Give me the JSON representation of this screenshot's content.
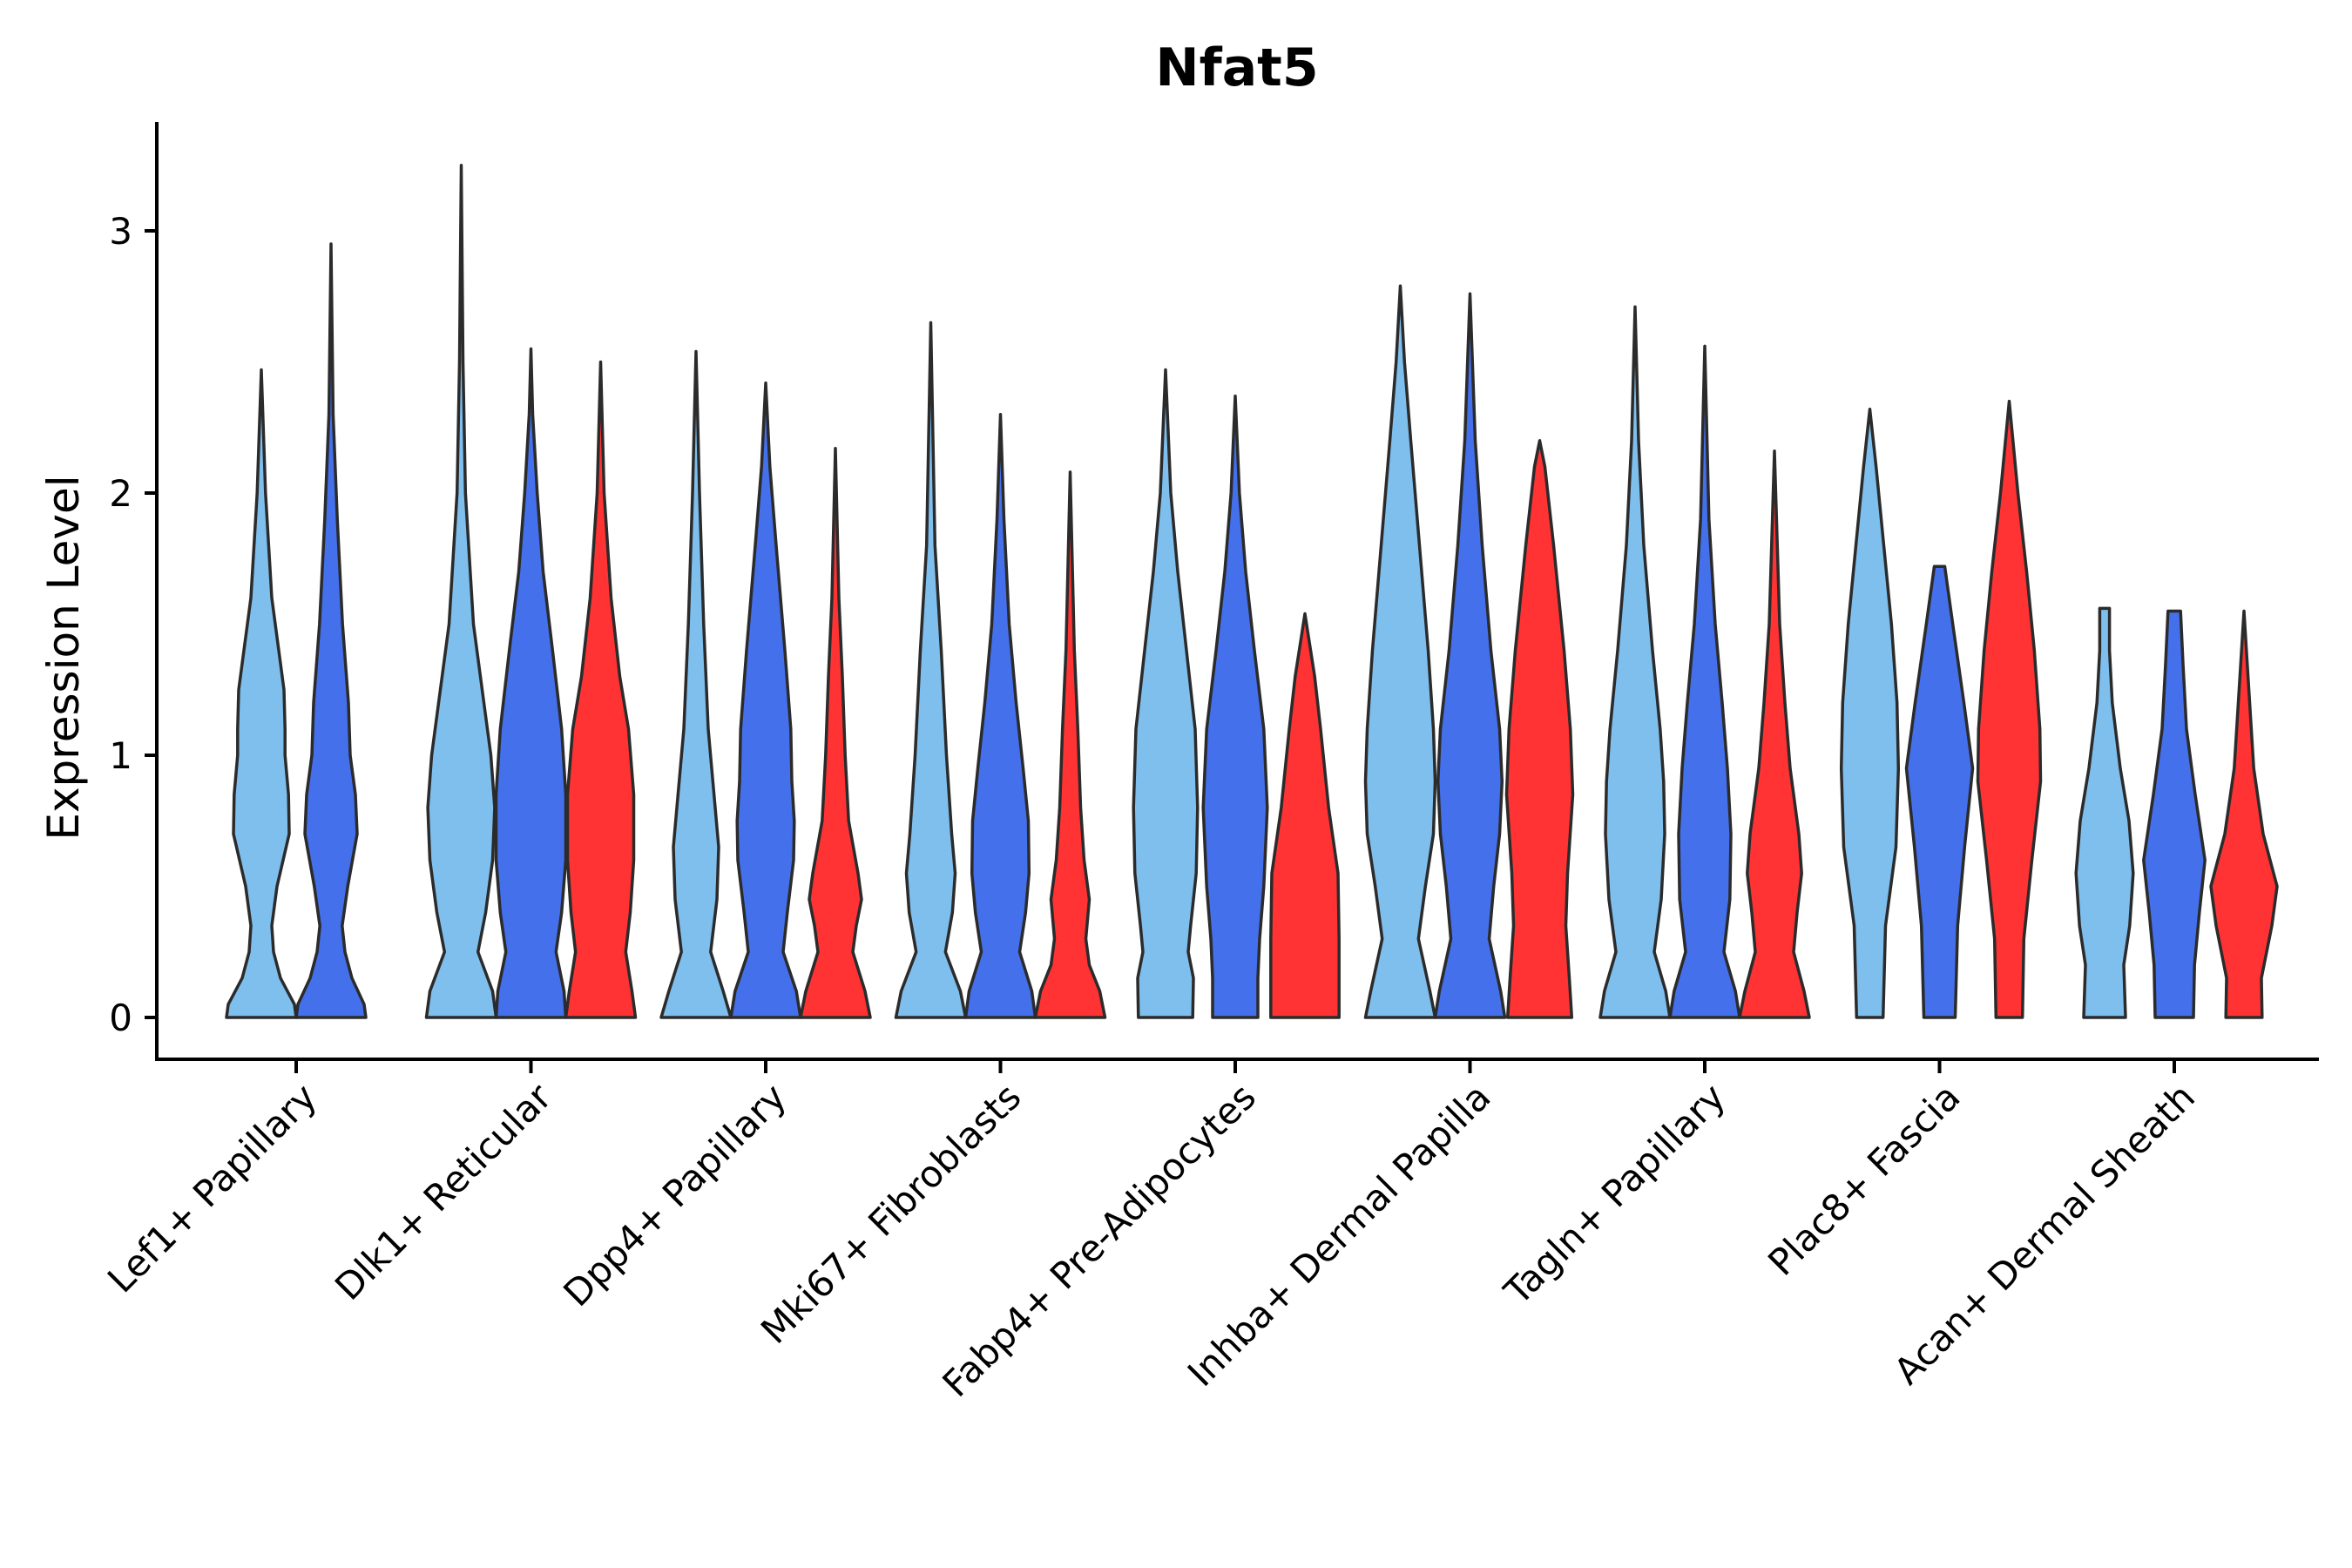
{
  "chart_data": {
    "type": "violin",
    "title": "Nfat5",
    "xlabel": "",
    "ylabel": "Expression Level",
    "ylim": [
      -0.17,
      3.42
    ],
    "yticks": [
      0,
      1,
      2,
      3
    ],
    "categories": [
      "Lef1+ Papillary",
      "Dlk1+ Reticular",
      "Dpp4+ Papillary",
      "Mki67+ Fibroblasts",
      "Fabp4+ Pre-Adipocytes",
      "Inhba+ Dermal Papilla",
      "Tagln+ Papillary",
      "Plac8+ Fascia",
      "Acan+ Dermal Sheath"
    ],
    "groups": [
      {
        "name": "group-1",
        "color": "#7fbfed"
      },
      {
        "name": "group-2",
        "color": "#4470eb"
      },
      {
        "name": "group-3",
        "color": "#ff3333"
      }
    ],
    "violins": [
      {
        "category": 0,
        "group": 0,
        "max": 2.47,
        "profile": [
          [
            0,
            1.0
          ],
          [
            0.05,
            0.95
          ],
          [
            0.15,
            0.55
          ],
          [
            0.25,
            0.35
          ],
          [
            0.35,
            0.3
          ],
          [
            0.5,
            0.45
          ],
          [
            0.7,
            0.8
          ],
          [
            0.85,
            0.78
          ],
          [
            1.0,
            0.68
          ],
          [
            1.1,
            0.68
          ],
          [
            1.25,
            0.65
          ],
          [
            1.4,
            0.5
          ],
          [
            1.6,
            0.3
          ],
          [
            2.0,
            0.12
          ],
          [
            2.47,
            0.0
          ]
        ]
      },
      {
        "category": 0,
        "group": 1,
        "max": 2.95,
        "profile": [
          [
            0,
            1.0
          ],
          [
            0.05,
            0.95
          ],
          [
            0.15,
            0.6
          ],
          [
            0.25,
            0.4
          ],
          [
            0.35,
            0.32
          ],
          [
            0.5,
            0.48
          ],
          [
            0.7,
            0.75
          ],
          [
            0.85,
            0.7
          ],
          [
            1.0,
            0.55
          ],
          [
            1.2,
            0.5
          ],
          [
            1.5,
            0.33
          ],
          [
            1.9,
            0.18
          ],
          [
            2.3,
            0.06
          ],
          [
            2.95,
            0.0
          ]
        ]
      },
      {
        "category": 1,
        "group": 0,
        "max": 3.25,
        "profile": [
          [
            0,
            1.0
          ],
          [
            0.1,
            0.9
          ],
          [
            0.25,
            0.48
          ],
          [
            0.4,
            0.7
          ],
          [
            0.6,
            0.9
          ],
          [
            0.8,
            0.96
          ],
          [
            1.0,
            0.85
          ],
          [
            1.2,
            0.65
          ],
          [
            1.5,
            0.35
          ],
          [
            2.0,
            0.12
          ],
          [
            2.5,
            0.05
          ],
          [
            3.25,
            0.0
          ]
        ]
      },
      {
        "category": 1,
        "group": 1,
        "max": 2.55,
        "profile": [
          [
            0,
            1.0
          ],
          [
            0.1,
            0.95
          ],
          [
            0.25,
            0.72
          ],
          [
            0.4,
            0.88
          ],
          [
            0.6,
            1.0
          ],
          [
            0.85,
            1.0
          ],
          [
            1.1,
            0.88
          ],
          [
            1.4,
            0.62
          ],
          [
            1.7,
            0.35
          ],
          [
            2.0,
            0.18
          ],
          [
            2.3,
            0.05
          ],
          [
            2.55,
            0.0
          ]
        ]
      },
      {
        "category": 1,
        "group": 2,
        "max": 2.5,
        "profile": [
          [
            0,
            1.0
          ],
          [
            0.1,
            0.9
          ],
          [
            0.25,
            0.72
          ],
          [
            0.4,
            0.85
          ],
          [
            0.6,
            0.95
          ],
          [
            0.85,
            0.95
          ],
          [
            1.1,
            0.8
          ],
          [
            1.3,
            0.55
          ],
          [
            1.6,
            0.3
          ],
          [
            2.0,
            0.1
          ],
          [
            2.5,
            0.0
          ]
        ]
      },
      {
        "category": 2,
        "group": 0,
        "max": 2.54,
        "profile": [
          [
            0,
            1.0
          ],
          [
            0.1,
            0.78
          ],
          [
            0.25,
            0.42
          ],
          [
            0.45,
            0.6
          ],
          [
            0.65,
            0.65
          ],
          [
            0.8,
            0.55
          ],
          [
            1.1,
            0.35
          ],
          [
            1.5,
            0.22
          ],
          [
            2.0,
            0.1
          ],
          [
            2.54,
            0.0
          ]
        ]
      },
      {
        "category": 2,
        "group": 1,
        "max": 2.42,
        "profile": [
          [
            0,
            1.0
          ],
          [
            0.1,
            0.88
          ],
          [
            0.25,
            0.5
          ],
          [
            0.4,
            0.62
          ],
          [
            0.6,
            0.8
          ],
          [
            0.75,
            0.82
          ],
          [
            0.9,
            0.75
          ],
          [
            1.1,
            0.72
          ],
          [
            1.4,
            0.55
          ],
          [
            1.8,
            0.3
          ],
          [
            2.1,
            0.12
          ],
          [
            2.42,
            0.0
          ]
        ]
      },
      {
        "category": 2,
        "group": 2,
        "max": 2.17,
        "profile": [
          [
            0,
            1.0
          ],
          [
            0.1,
            0.85
          ],
          [
            0.25,
            0.5
          ],
          [
            0.35,
            0.6
          ],
          [
            0.45,
            0.75
          ],
          [
            0.55,
            0.65
          ],
          [
            0.75,
            0.38
          ],
          [
            1.0,
            0.28
          ],
          [
            1.3,
            0.2
          ],
          [
            1.6,
            0.1
          ],
          [
            2.17,
            0.0
          ]
        ]
      },
      {
        "category": 3,
        "group": 0,
        "max": 2.65,
        "profile": [
          [
            0,
            1.0
          ],
          [
            0.1,
            0.85
          ],
          [
            0.25,
            0.42
          ],
          [
            0.4,
            0.62
          ],
          [
            0.55,
            0.7
          ],
          [
            0.7,
            0.6
          ],
          [
            1.0,
            0.45
          ],
          [
            1.4,
            0.3
          ],
          [
            1.8,
            0.12
          ],
          [
            2.65,
            0.0
          ]
        ]
      },
      {
        "category": 3,
        "group": 1,
        "max": 2.3,
        "profile": [
          [
            0,
            1.0
          ],
          [
            0.1,
            0.9
          ],
          [
            0.25,
            0.55
          ],
          [
            0.4,
            0.72
          ],
          [
            0.55,
            0.82
          ],
          [
            0.75,
            0.8
          ],
          [
            0.95,
            0.65
          ],
          [
            1.2,
            0.45
          ],
          [
            1.5,
            0.25
          ],
          [
            1.9,
            0.1
          ],
          [
            2.3,
            0.0
          ]
        ]
      },
      {
        "category": 3,
        "group": 2,
        "max": 2.08,
        "profile": [
          [
            0,
            1.0
          ],
          [
            0.1,
            0.85
          ],
          [
            0.2,
            0.55
          ],
          [
            0.3,
            0.45
          ],
          [
            0.45,
            0.55
          ],
          [
            0.6,
            0.4
          ],
          [
            0.8,
            0.3
          ],
          [
            1.1,
            0.22
          ],
          [
            1.4,
            0.12
          ],
          [
            2.08,
            0.0
          ]
        ]
      },
      {
        "category": 4,
        "group": 0,
        "max": 2.47,
        "profile": [
          [
            0,
            0.78
          ],
          [
            0.15,
            0.8
          ],
          [
            0.25,
            0.65
          ],
          [
            0.35,
            0.72
          ],
          [
            0.55,
            0.88
          ],
          [
            0.8,
            0.92
          ],
          [
            1.1,
            0.85
          ],
          [
            1.4,
            0.6
          ],
          [
            1.7,
            0.35
          ],
          [
            2.0,
            0.15
          ],
          [
            2.47,
            0.0
          ]
        ]
      },
      {
        "category": 4,
        "group": 1,
        "max": 2.37,
        "profile": [
          [
            0,
            0.65
          ],
          [
            0.15,
            0.65
          ],
          [
            0.3,
            0.7
          ],
          [
            0.5,
            0.82
          ],
          [
            0.8,
            0.92
          ],
          [
            1.1,
            0.82
          ],
          [
            1.4,
            0.55
          ],
          [
            1.7,
            0.3
          ],
          [
            2.0,
            0.12
          ],
          [
            2.37,
            0.0
          ]
        ]
      },
      {
        "category": 4,
        "group": 2,
        "max": 1.54,
        "profile": [
          [
            0,
            0.98
          ],
          [
            0.3,
            0.98
          ],
          [
            0.55,
            0.95
          ],
          [
            0.8,
            0.68
          ],
          [
            1.1,
            0.45
          ],
          [
            1.3,
            0.28
          ],
          [
            1.54,
            0.0
          ]
        ]
      },
      {
        "category": 5,
        "group": 0,
        "max": 2.79,
        "profile": [
          [
            0,
            1.0
          ],
          [
            0.1,
            0.85
          ],
          [
            0.3,
            0.52
          ],
          [
            0.5,
            0.72
          ],
          [
            0.7,
            0.95
          ],
          [
            0.9,
            1.0
          ],
          [
            1.1,
            0.95
          ],
          [
            1.4,
            0.8
          ],
          [
            1.8,
            0.55
          ],
          [
            2.2,
            0.3
          ],
          [
            2.5,
            0.12
          ],
          [
            2.79,
            0.0
          ]
        ]
      },
      {
        "category": 5,
        "group": 1,
        "max": 2.76,
        "profile": [
          [
            0,
            1.0
          ],
          [
            0.1,
            0.88
          ],
          [
            0.3,
            0.55
          ],
          [
            0.5,
            0.68
          ],
          [
            0.7,
            0.85
          ],
          [
            0.9,
            0.92
          ],
          [
            1.1,
            0.85
          ],
          [
            1.4,
            0.6
          ],
          [
            1.8,
            0.35
          ],
          [
            2.2,
            0.15
          ],
          [
            2.76,
            0.0
          ]
        ]
      },
      {
        "category": 5,
        "group": 2,
        "max": 2.2,
        "profile": [
          [
            0,
            0.92
          ],
          [
            0.15,
            0.85
          ],
          [
            0.35,
            0.75
          ],
          [
            0.55,
            0.8
          ],
          [
            0.85,
            0.95
          ],
          [
            1.1,
            0.88
          ],
          [
            1.4,
            0.7
          ],
          [
            1.8,
            0.4
          ],
          [
            2.1,
            0.15
          ],
          [
            2.2,
            0.0
          ]
        ]
      },
      {
        "category": 5,
        "group": 2,
        "max": 0,
        "profile": []
      },
      {
        "category": 6,
        "group": 0,
        "max": 2.71,
        "profile": [
          [
            0,
            1.0
          ],
          [
            0.1,
            0.88
          ],
          [
            0.25,
            0.55
          ],
          [
            0.45,
            0.75
          ],
          [
            0.7,
            0.85
          ],
          [
            0.9,
            0.82
          ],
          [
            1.1,
            0.72
          ],
          [
            1.4,
            0.5
          ],
          [
            1.8,
            0.25
          ],
          [
            2.2,
            0.1
          ],
          [
            2.71,
            0.0
          ]
        ]
      },
      {
        "category": 6,
        "group": 1,
        "max": 2.56,
        "profile": [
          [
            0,
            1.0
          ],
          [
            0.1,
            0.88
          ],
          [
            0.25,
            0.55
          ],
          [
            0.45,
            0.72
          ],
          [
            0.7,
            0.75
          ],
          [
            0.95,
            0.65
          ],
          [
            1.2,
            0.5
          ],
          [
            1.5,
            0.3
          ],
          [
            1.9,
            0.12
          ],
          [
            2.56,
            0.0
          ]
        ]
      },
      {
        "category": 6,
        "group": 2,
        "max": 2.16,
        "profile": [
          [
            0,
            1.0
          ],
          [
            0.1,
            0.85
          ],
          [
            0.25,
            0.55
          ],
          [
            0.4,
            0.65
          ],
          [
            0.55,
            0.78
          ],
          [
            0.7,
            0.7
          ],
          [
            0.95,
            0.45
          ],
          [
            1.2,
            0.3
          ],
          [
            1.5,
            0.15
          ],
          [
            2.16,
            0.0
          ]
        ]
      },
      {
        "category": 7,
        "group": 0,
        "max": 2.32,
        "profile": [
          [
            0,
            0.38
          ],
          [
            0.35,
            0.45
          ],
          [
            0.65,
            0.75
          ],
          [
            0.95,
            0.82
          ],
          [
            1.2,
            0.78
          ],
          [
            1.5,
            0.62
          ],
          [
            1.8,
            0.4
          ],
          [
            2.1,
            0.18
          ],
          [
            2.32,
            0.0
          ]
        ]
      },
      {
        "category": 7,
        "group": 1,
        "max": 1.72,
        "profile": [
          [
            0,
            0.45
          ],
          [
            0.35,
            0.52
          ],
          [
            0.65,
            0.72
          ],
          [
            0.95,
            0.95
          ],
          [
            1.2,
            0.7
          ],
          [
            1.5,
            0.38
          ],
          [
            1.72,
            0.15
          ],
          [
            1.72,
            0.0
          ]
        ]
      },
      {
        "category": 7,
        "group": 2,
        "max": 2.35,
        "profile": [
          [
            0,
            0.38
          ],
          [
            0.3,
            0.42
          ],
          [
            0.6,
            0.65
          ],
          [
            0.9,
            0.9
          ],
          [
            1.1,
            0.88
          ],
          [
            1.4,
            0.72
          ],
          [
            1.7,
            0.5
          ],
          [
            2.0,
            0.25
          ],
          [
            2.35,
            0.0
          ]
        ]
      },
      {
        "category": 8,
        "group": 0,
        "max": 1.56,
        "profile": [
          [
            0,
            0.6
          ],
          [
            0.2,
            0.55
          ],
          [
            0.35,
            0.72
          ],
          [
            0.55,
            0.82
          ],
          [
            0.75,
            0.7
          ],
          [
            0.95,
            0.45
          ],
          [
            1.2,
            0.22
          ],
          [
            1.4,
            0.14
          ],
          [
            1.56,
            0.14
          ],
          [
            1.56,
            0.0
          ]
        ]
      },
      {
        "category": 8,
        "group": 1,
        "max": 1.55,
        "profile": [
          [
            0,
            0.55
          ],
          [
            0.2,
            0.58
          ],
          [
            0.4,
            0.72
          ],
          [
            0.6,
            0.88
          ],
          [
            0.85,
            0.6
          ],
          [
            1.1,
            0.35
          ],
          [
            1.35,
            0.25
          ],
          [
            1.55,
            0.18
          ],
          [
            1.55,
            0.0
          ]
        ]
      },
      {
        "category": 8,
        "group": 2,
        "max": 1.55,
        "profile": [
          [
            0,
            0.52
          ],
          [
            0.15,
            0.5
          ],
          [
            0.35,
            0.8
          ],
          [
            0.5,
            0.95
          ],
          [
            0.7,
            0.55
          ],
          [
            0.95,
            0.28
          ],
          [
            1.25,
            0.14
          ],
          [
            1.55,
            0.0
          ]
        ]
      }
    ]
  }
}
